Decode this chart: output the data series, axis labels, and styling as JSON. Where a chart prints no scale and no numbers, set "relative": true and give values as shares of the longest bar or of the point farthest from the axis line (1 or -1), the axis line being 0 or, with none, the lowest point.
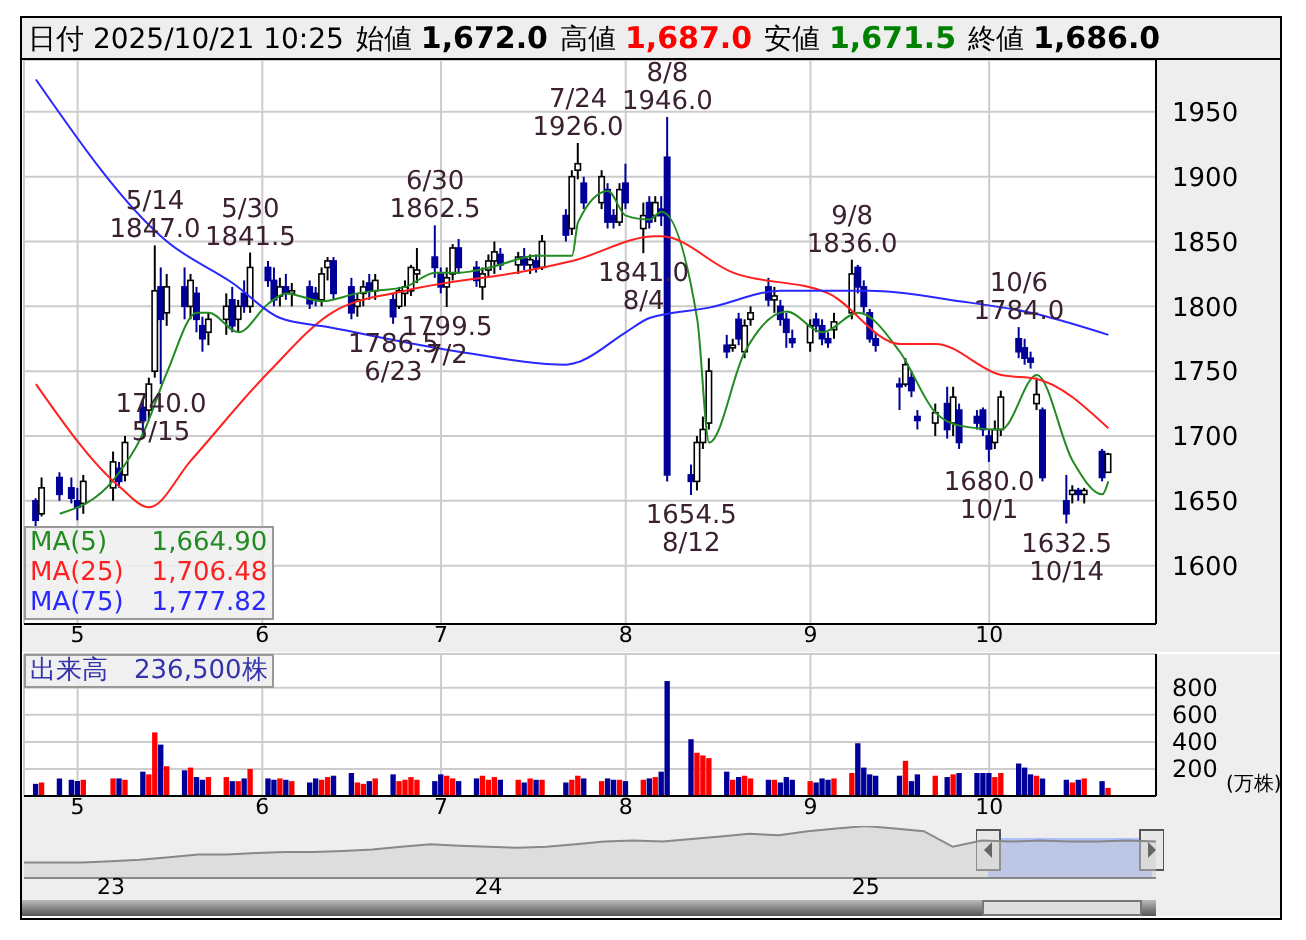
{
  "chart_data": [
    {
      "type": "candlestick",
      "title": "日付 2025/10/21 10:25",
      "colors": [
        "#000099",
        "#ffffff",
        "#000099",
        "#000099",
        "#000099",
        "#ffffff",
        "#ffffff",
        "#000099",
        "#ffffff",
        "#000099",
        "#ffffff",
        "#ffffff",
        "#000099",
        "#ffffff",
        "#000099",
        "#ffffff",
        "#000099",
        "#000099",
        "#ffffff",
        "#ffffff",
        "#000099",
        "#ffffff",
        "#000099",
        "#ffffff",
        "#000099",
        "#000099",
        "#ffffff",
        "#000099",
        "#ffffff",
        "#000099",
        "#000099",
        "#ffffff",
        "#ffffff",
        "#000099",
        "#000099",
        "#ffffff",
        "#ffffff",
        "#000099",
        "#ffffff",
        "#000099",
        "#ffffff",
        "#ffffff",
        "#ffffff",
        "#ffffff",
        "#000099",
        "#000099",
        "#ffffff",
        "#ffffff",
        "#000099",
        "#000099",
        "#ffffff",
        "#ffffff",
        "#ffffff",
        "#000099",
        "#ffffff",
        "#000099",
        "#ffffff",
        "#000099",
        "#ffffff",
        "#000099",
        "#ffffff",
        "#ffffff",
        "#000099",
        "#ffffff",
        "#000099",
        "#000099",
        "#ffffff",
        "#000099",
        "#ffffff",
        "#000099",
        "#ffffff",
        "#000099",
        "#000099",
        "#000099",
        "#ffffff",
        "#ffffff",
        "#ffffff",
        "#000099",
        "#ffffff",
        "#000099",
        "#ffffff",
        "#ffffff",
        "#000099",
        "#ffffff",
        "#000099",
        "#000099",
        "#000099",
        "#ffffff",
        "#000099",
        "#000099",
        "#000099",
        "#ffffff",
        "#ffffff",
        "#000099",
        "#000099",
        "#000099",
        "#000099",
        "#000099",
        "#ffffff",
        "#000099",
        "#000099",
        "#ffffff",
        "#000099",
        "#ffffff",
        "#000099",
        "#000099",
        "#000099",
        "#000099",
        "#ffffff",
        "#ffffff",
        "#000099",
        "#000099",
        "#000099",
        "#ffffff",
        "#000099",
        "#000099",
        "#ffffff",
        "#000099",
        "#ffffff",
        "#000099",
        "#ffffff"
      ],
      "x": [
        "2025-04-24",
        "2025-04-25",
        "2025-04-28",
        "2025-04-30",
        "2025-05-01",
        "2025-05-02",
        "2025-05-07",
        "2025-05-08",
        "2025-05-09",
        "2025-05-12",
        "2025-05-13",
        "2025-05-14",
        "2025-05-15",
        "2025-05-16",
        "2025-05-19",
        "2025-05-20",
        "2025-05-21",
        "2025-05-22",
        "2025-05-23",
        "2025-05-26",
        "2025-05-27",
        "2025-05-28",
        "2025-05-29",
        "2025-05-30",
        "2025-06-02",
        "2025-06-03",
        "2025-06-04",
        "2025-06-05",
        "2025-06-06",
        "2025-06-09",
        "2025-06-10",
        "2025-06-11",
        "2025-06-12",
        "2025-06-13",
        "2025-06-16",
        "2025-06-17",
        "2025-06-18",
        "2025-06-19",
        "2025-06-20",
        "2025-06-23",
        "2025-06-24",
        "2025-06-25",
        "2025-06-26",
        "2025-06-27",
        "2025-06-30",
        "2025-07-01",
        "2025-07-02",
        "2025-07-03",
        "2025-07-04",
        "2025-07-07",
        "2025-07-08",
        "2025-07-09",
        "2025-07-10",
        "2025-07-11",
        "2025-07-14",
        "2025-07-15",
        "2025-07-16",
        "2025-07-17",
        "2025-07-18",
        "2025-07-22",
        "2025-07-23",
        "2025-07-24",
        "2025-07-25",
        "2025-07-28",
        "2025-07-29",
        "2025-07-30",
        "2025-07-31",
        "2025-08-01",
        "2025-08-04",
        "2025-08-05",
        "2025-08-06",
        "2025-08-07",
        "2025-08-08",
        "2025-08-12",
        "2025-08-13",
        "2025-08-14",
        "2025-08-15",
        "2025-08-18",
        "2025-08-19",
        "2025-08-20",
        "2025-08-21",
        "2025-08-22",
        "2025-08-25",
        "2025-08-26",
        "2025-08-27",
        "2025-08-28",
        "2025-08-29",
        "2025-09-01",
        "2025-09-02",
        "2025-09-03",
        "2025-09-04",
        "2025-09-05",
        "2025-09-08",
        "2025-09-09",
        "2025-09-10",
        "2025-09-11",
        "2025-09-12",
        "2025-09-16",
        "2025-09-17",
        "2025-09-18",
        "2025-09-19",
        "2025-09-22",
        "2025-09-24",
        "2025-09-25",
        "2025-09-26",
        "2025-09-29",
        "2025-09-30",
        "2025-10-01",
        "2025-10-02",
        "2025-10-03",
        "2025-10-06",
        "2025-10-07",
        "2025-10-08",
        "2025-10-09",
        "2025-10-10",
        "2025-10-14",
        "2025-10-15",
        "2025-10-16",
        "2025-10-17",
        "2025-10-20",
        "2025-10-21"
      ],
      "ohlc": [
        [
          1650,
          1652,
          1628,
          1635
        ],
        [
          1640,
          1668,
          1638,
          1660
        ],
        [
          1668,
          1672,
          1650,
          1655
        ],
        [
          1660,
          1668,
          1648,
          1652
        ],
        [
          1650,
          1660,
          1635,
          1645
        ],
        [
          1648,
          1670,
          1640,
          1665
        ],
        [
          1660,
          1688,
          1650,
          1680
        ],
        [
          1675,
          1680,
          1660,
          1665
        ],
        [
          1670,
          1700,
          1665,
          1695
        ],
        [
          1722,
          1728,
          1700,
          1712
        ],
        [
          1720,
          1745,
          1712,
          1740
        ],
        [
          1750,
          1847,
          1745,
          1812
        ],
        [
          1815,
          1830,
          1740,
          1790
        ],
        [
          1795,
          1825,
          1785,
          1815
        ],
        [
          1815,
          1830,
          1790,
          1800
        ],
        [
          1800,
          1825,
          1790,
          1820
        ],
        [
          1810,
          1815,
          1780,
          1790
        ],
        [
          1785,
          1792,
          1765,
          1775
        ],
        [
          1780,
          1795,
          1770,
          1790
        ],
        [
          1790,
          1810,
          1778,
          1800
        ],
        [
          1805,
          1815,
          1780,
          1785
        ],
        [
          1790,
          1805,
          1780,
          1800
        ],
        [
          1810,
          1820,
          1795,
          1800
        ],
        [
          1800,
          1841.5,
          1795,
          1830
        ],
        [
          1830,
          1835,
          1815,
          1820
        ],
        [
          1820,
          1830,
          1800,
          1805
        ],
        [
          1808,
          1822,
          1800,
          1815
        ],
        [
          1815,
          1825,
          1805,
          1810
        ],
        [
          1810,
          1818,
          1800,
          1812
        ],
        [
          1815,
          1820,
          1798,
          1802
        ],
        [
          1810,
          1815,
          1800,
          1805
        ],
        [
          1805,
          1830,
          1800,
          1825
        ],
        [
          1830,
          1838,
          1820,
          1835
        ],
        [
          1835,
          1838,
          1805,
          1810
        ],
        [
          1815,
          1822,
          1790,
          1795
        ],
        [
          1800,
          1810,
          1792,
          1805
        ],
        [
          1810,
          1820,
          1800,
          1815
        ],
        [
          1818,
          1825,
          1805,
          1812
        ],
        [
          1812,
          1825,
          1805,
          1820
        ],
        [
          1805,
          1810,
          1786.5,
          1792
        ],
        [
          1800,
          1815,
          1798,
          1812
        ],
        [
          1810,
          1820,
          1800,
          1815
        ],
        [
          1812,
          1832,
          1808,
          1830
        ],
        [
          1825,
          1845,
          1818,
          1828
        ],
        [
          1838,
          1862.5,
          1822,
          1830
        ],
        [
          1825,
          1830,
          1810,
          1815
        ],
        [
          1815,
          1830,
          1799.5,
          1822
        ],
        [
          1825,
          1848,
          1820,
          1845
        ],
        [
          1845,
          1852,
          1825,
          1830
        ],
        [
          1830,
          1835,
          1815,
          1820
        ],
        [
          1815,
          1830,
          1805,
          1825
        ],
        [
          1828,
          1840,
          1822,
          1835
        ],
        [
          1835,
          1850,
          1825,
          1842
        ],
        [
          1840,
          1845,
          1828,
          1832
        ],
        [
          1832,
          1842,
          1825,
          1838
        ],
        [
          1838,
          1845,
          1828,
          1832
        ],
        [
          1832,
          1840,
          1825,
          1836
        ],
        [
          1835,
          1840,
          1826,
          1830
        ],
        [
          1830,
          1855,
          1828,
          1850
        ],
        [
          1870,
          1875,
          1850,
          1855
        ],
        [
          1860,
          1905,
          1855,
          1900
        ],
        [
          1905,
          1926,
          1898,
          1910
        ],
        [
          1895,
          1900,
          1875,
          1880
        ],
        [
          1880,
          1905,
          1875,
          1900
        ],
        [
          1890,
          1895,
          1860,
          1865
        ],
        [
          1870,
          1875,
          1860,
          1865
        ],
        [
          1865,
          1895,
          1862,
          1890
        ],
        [
          1895,
          1910,
          1875,
          1880
        ],
        [
          1860,
          1880,
          1841,
          1870
        ],
        [
          1880,
          1885,
          1860,
          1865
        ],
        [
          1870,
          1885,
          1865,
          1880
        ],
        [
          1875,
          1885,
          1862,
          1870
        ],
        [
          1915,
          1946,
          1665,
          1670
        ],
        [
          1670,
          1678,
          1654.5,
          1665
        ],
        [
          1665,
          1700,
          1658,
          1695
        ],
        [
          1695,
          1715,
          1690,
          1705
        ],
        [
          1710,
          1760,
          1705,
          1750
        ],
        [
          1770,
          1778,
          1760,
          1765
        ],
        [
          1768,
          1775,
          1765,
          1770
        ],
        [
          1790,
          1795,
          1770,
          1775
        ],
        [
          1765,
          1790,
          1760,
          1785
        ],
        [
          1790,
          1800,
          1785,
          1795
        ],
        [
          1815,
          1822,
          1800,
          1805
        ],
        [
          1805,
          1815,
          1795,
          1808
        ],
        [
          1800,
          1805,
          1785,
          1790
        ],
        [
          1790,
          1795,
          1768,
          1780
        ],
        [
          1775,
          1782,
          1768,
          1772
        ],
        [
          1772,
          1790,
          1765,
          1785
        ],
        [
          1790,
          1795,
          1780,
          1785
        ],
        [
          1785,
          1790,
          1770,
          1775
        ],
        [
          1775,
          1780,
          1768,
          1772
        ],
        [
          1782,
          1795,
          1775,
          1788
        ],
        [
          1795,
          1836,
          1790,
          1825
        ],
        [
          1830,
          1832,
          1810,
          1815
        ],
        [
          1815,
          1820,
          1795,
          1800
        ],
        [
          1795,
          1798,
          1772,
          1775
        ],
        [
          1775,
          1780,
          1765,
          1770
        ],
        [
          1740,
          1745,
          1720,
          1738
        ],
        [
          1740,
          1760,
          1738,
          1755
        ],
        [
          1745,
          1750,
          1730,
          1735
        ],
        [
          1715,
          1720,
          1705,
          1712
        ],
        [
          1710,
          1725,
          1700,
          1718
        ],
        [
          1725,
          1738,
          1698,
          1705
        ],
        [
          1710,
          1738,
          1700,
          1730
        ],
        [
          1720,
          1725,
          1690,
          1695
        ],
        [
          1715,
          1720,
          1705,
          1710
        ],
        [
          1720,
          1722,
          1700,
          1705
        ],
        [
          1700,
          1705,
          1680,
          1690
        ],
        [
          1695,
          1712,
          1690,
          1705
        ],
        [
          1705,
          1735,
          1700,
          1730
        ],
        [
          1775,
          1784,
          1760,
          1765
        ],
        [
          1768,
          1775,
          1755,
          1760
        ],
        [
          1760,
          1765,
          1752,
          1757
        ],
        [
          1725,
          1745,
          1720,
          1732
        ],
        [
          1720,
          1722,
          1665,
          1668
        ],
        [
          1650,
          1670,
          1632.5,
          1640
        ],
        [
          1655,
          1662,
          1648,
          1658
        ],
        [
          1658,
          1660,
          1650,
          1655
        ],
        [
          1655,
          1660,
          1648,
          1658
        ],
        [
          1688,
          1690,
          1665,
          1668
        ],
        [
          1672,
          1687,
          1671.5,
          1686
        ]
      ],
      "series": [
        {
          "name": "MA(5) 1,664.90",
          "type": "line",
          "color": "#228b22",
          "x": [
            "2025-04-28",
            "2025-05-07",
            "2025-05-12",
            "2025-05-16",
            "2025-05-21",
            "2025-05-23",
            "2025-05-28",
            "2025-06-02",
            "2025-06-05",
            "2025-06-11",
            "2025-06-17",
            "2025-06-20",
            "2025-06-25",
            "2025-06-30",
            "2025-07-04",
            "2025-07-10",
            "2025-07-17",
            "2025-07-23",
            "2025-07-24",
            "2025-07-29",
            "2025-08-01",
            "2025-08-05",
            "2025-08-07",
            "2025-08-13",
            "2025-08-15",
            "2025-08-21",
            "2025-08-28",
            "2025-09-03",
            "2025-09-09",
            "2025-09-16",
            "2025-09-22",
            "2025-09-26",
            "2025-10-03",
            "2025-10-09",
            "2025-10-15",
            "2025-10-20",
            "2025-10-21"
          ],
          "values": [
            1640,
            1666,
            1702,
            1749,
            1795,
            1795,
            1780,
            1802,
            1810,
            1804,
            1810,
            1812,
            1815,
            1826,
            1826,
            1831,
            1839,
            1839,
            1865,
            1889,
            1870,
            1867,
            1873,
            1790,
            1695,
            1765,
            1796,
            1780,
            1795,
            1765,
            1718,
            1708,
            1705,
            1747,
            1681,
            1655,
            1665
          ]
        },
        {
          "name": "MA(25) 1,706.48",
          "type": "line",
          "color": "#ff2020",
          "x": [
            "2025-04-24",
            "2025-05-08",
            "2025-05-13",
            "2025-05-20",
            "2025-06-02",
            "2025-06-13",
            "2025-06-25",
            "2025-07-16",
            "2025-07-23",
            "2025-08-06",
            "2025-08-07",
            "2025-08-19",
            "2025-09-04",
            "2025-09-16",
            "2025-09-22",
            "2025-10-03",
            "2025-10-09",
            "2025-10-21"
          ],
          "values": [
            1740,
            1661,
            1645,
            1681,
            1749,
            1796,
            1812,
            1828,
            1835,
            1854,
            1854,
            1826,
            1810,
            1771,
            1771,
            1747,
            1744,
            1706
          ]
        },
        {
          "name": "MA(75) 1,777.82",
          "type": "line",
          "color": "#2828ff",
          "x": [
            "2025-04-24",
            "2025-05-16",
            "2025-05-27",
            "2025-06-04",
            "2025-06-12",
            "2025-07-04",
            "2025-07-22",
            "2025-07-24",
            "2025-08-01",
            "2025-08-05",
            "2025-08-15",
            "2025-08-27",
            "2025-09-11",
            "2025-09-26",
            "2025-10-08",
            "2025-10-21"
          ],
          "values": [
            1975,
            1850,
            1818,
            1791,
            1784,
            1765,
            1755,
            1757,
            1780,
            1791,
            1799,
            1812,
            1812,
            1804,
            1795,
            1778
          ]
        }
      ],
      "xlim": [
        "2025-04-22",
        "2025-10-29"
      ],
      "xticks": [
        {
          "value": "2025-05-01",
          "label": "5"
        },
        {
          "value": "2025-06-01",
          "label": "6"
        },
        {
          "value": "2025-07-01",
          "label": "7"
        },
        {
          "value": "2025-08-01",
          "label": "8"
        },
        {
          "value": "2025-09-01",
          "label": "9"
        },
        {
          "value": "2025-10-01",
          "label": "10"
        }
      ],
      "ylim": [
        1555,
        1990
      ],
      "yticks": [
        1600,
        1650,
        1700,
        1750,
        1800,
        1850,
        1900,
        1950
      ],
      "grid": true,
      "legend": "bottom left",
      "annotations": [
        "始値 1,672.0",
        "高値 1,687.0",
        "安値 1,671.5",
        "終値 1,686.0",
        {
          "text": "5/14\n1847.0",
          "x": "2025-05-14",
          "y": 1847
        },
        {
          "text": "1740.0\n5/15",
          "x": "2025-05-15",
          "y": 1740
        },
        {
          "text": "5/30\n1841.5",
          "x": "2025-05-30",
          "y": 1841.5
        },
        {
          "text": "1786.5\n6/23",
          "x": "2025-06-23",
          "y": 1786.5
        },
        {
          "text": "6/30\n1862.5",
          "x": "2025-06-30",
          "y": 1862.5
        },
        {
          "text": "1799.5\n7/2",
          "x": "2025-07-02",
          "y": 1799.5
        },
        {
          "text": "7/24\n1926.0",
          "x": "2025-07-24",
          "y": 1926
        },
        {
          "text": "1841.0\n8/4",
          "x": "2025-08-04",
          "y": 1841
        },
        {
          "text": "8/8\n1946.0",
          "x": "2025-08-08",
          "y": 1946
        },
        {
          "text": "1654.5\n8/12",
          "x": "2025-08-12",
          "y": 1654.5
        },
        {
          "text": "9/8\n1836.0",
          "x": "2025-09-08",
          "y": 1836
        },
        {
          "text": "1680.0\n10/1",
          "x": "2025-10-01",
          "y": 1680
        },
        {
          "text": "10/6\n1784.0",
          "x": "2025-10-06",
          "y": 1784
        },
        {
          "text": "1632.5\n10/14",
          "x": "2025-10-14",
          "y": 1632.5
        }
      ]
    },
    {
      "type": "bar",
      "title": "出来高　236,500株",
      "ylabel": "(万株)",
      "x": [
        "2025-04-24",
        "2025-04-25",
        "2025-04-28",
        "2025-04-30",
        "2025-05-01",
        "2025-05-02",
        "2025-05-07",
        "2025-05-08",
        "2025-05-09",
        "2025-05-12",
        "2025-05-13",
        "2025-05-14",
        "2025-05-15",
        "2025-05-16",
        "2025-05-19",
        "2025-05-20",
        "2025-05-21",
        "2025-05-22",
        "2025-05-23",
        "2025-05-26",
        "2025-05-27",
        "2025-05-28",
        "2025-05-29",
        "2025-05-30",
        "2025-06-02",
        "2025-06-03",
        "2025-06-04",
        "2025-06-05",
        "2025-06-06",
        "2025-06-09",
        "2025-06-10",
        "2025-06-11",
        "2025-06-12",
        "2025-06-13",
        "2025-06-16",
        "2025-06-17",
        "2025-06-18",
        "2025-06-19",
        "2025-06-20",
        "2025-06-23",
        "2025-06-24",
        "2025-06-25",
        "2025-06-26",
        "2025-06-27",
        "2025-06-30",
        "2025-07-01",
        "2025-07-02",
        "2025-07-03",
        "2025-07-04",
        "2025-07-07",
        "2025-07-08",
        "2025-07-09",
        "2025-07-10",
        "2025-07-11",
        "2025-07-14",
        "2025-07-15",
        "2025-07-16",
        "2025-07-17",
        "2025-07-18",
        "2025-07-22",
        "2025-07-23",
        "2025-07-24",
        "2025-07-25",
        "2025-07-28",
        "2025-07-29",
        "2025-07-30",
        "2025-07-31",
        "2025-08-01",
        "2025-08-04",
        "2025-08-05",
        "2025-08-06",
        "2025-08-07",
        "2025-08-08",
        "2025-08-12",
        "2025-08-13",
        "2025-08-14",
        "2025-08-15",
        "2025-08-18",
        "2025-08-19",
        "2025-08-20",
        "2025-08-21",
        "2025-08-22",
        "2025-08-25",
        "2025-08-26",
        "2025-08-27",
        "2025-08-28",
        "2025-08-29",
        "2025-09-01",
        "2025-09-02",
        "2025-09-03",
        "2025-09-04",
        "2025-09-05",
        "2025-09-08",
        "2025-09-09",
        "2025-09-10",
        "2025-09-11",
        "2025-09-12",
        "2025-09-16",
        "2025-09-17",
        "2025-09-18",
        "2025-09-19",
        "2025-09-22",
        "2025-09-24",
        "2025-09-25",
        "2025-09-26",
        "2025-09-29",
        "2025-09-30",
        "2025-10-01",
        "2025-10-02",
        "2025-10-03",
        "2025-10-06",
        "2025-10-07",
        "2025-10-08",
        "2025-10-09",
        "2025-10-10",
        "2025-10-14",
        "2025-10-15",
        "2025-10-16",
        "2025-10-17",
        "2025-10-20",
        "2025-10-21"
      ],
      "values": [
        90,
        100,
        130,
        120,
        110,
        120,
        130,
        130,
        120,
        180,
        160,
        470,
        380,
        220,
        190,
        210,
        140,
        120,
        140,
        140,
        110,
        110,
        130,
        200,
        130,
        120,
        130,
        120,
        110,
        100,
        130,
        120,
        140,
        150,
        170,
        100,
        90,
        110,
        130,
        160,
        110,
        120,
        140,
        120,
        110,
        160,
        150,
        130,
        110,
        130,
        150,
        120,
        140,
        120,
        120,
        100,
        130,
        120,
        120,
        100,
        120,
        150,
        130,
        110,
        130,
        120,
        120,
        110,
        120,
        130,
        140,
        180,
        850,
        420,
        320,
        300,
        280,
        180,
        120,
        140,
        150,
        130,
        120,
        120,
        100,
        140,
        120,
        110,
        100,
        130,
        120,
        130,
        170,
        390,
        210,
        160,
        150,
        150,
        260,
        110,
        160,
        150,
        140,
        160,
        170,
        170,
        170,
        170,
        140,
        170,
        240,
        210,
        160,
        150,
        130,
        120,
        100,
        120,
        130,
        110,
        60
      ],
      "colors": [
        "#000099",
        "#ff0000",
        "#000099",
        "#000099",
        "#000099",
        "#ff0000",
        "#ff0000",
        "#000099",
        "#ff0000",
        "#000099",
        "#ff0000",
        "#ff0000",
        "#000099",
        "#ff0000",
        "#000099",
        "#ff0000",
        "#000099",
        "#000099",
        "#ff0000",
        "#ff0000",
        "#000099",
        "#ff0000",
        "#000099",
        "#ff0000",
        "#000099",
        "#000099",
        "#ff0000",
        "#000099",
        "#ff0000",
        "#000099",
        "#000099",
        "#ff0000",
        "#ff0000",
        "#000099",
        "#000099",
        "#ff0000",
        "#ff0000",
        "#000099",
        "#ff0000",
        "#000099",
        "#ff0000",
        "#ff0000",
        "#ff0000",
        "#ff0000",
        "#000099",
        "#000099",
        "#ff0000",
        "#ff0000",
        "#000099",
        "#000099",
        "#ff0000",
        "#ff0000",
        "#ff0000",
        "#000099",
        "#ff0000",
        "#000099",
        "#ff0000",
        "#000099",
        "#ff0000",
        "#000099",
        "#ff0000",
        "#ff0000",
        "#000099",
        "#ff0000",
        "#000099",
        "#000099",
        "#ff0000",
        "#000099",
        "#ff0000",
        "#000099",
        "#ff0000",
        "#000099",
        "#000099",
        "#000099",
        "#ff0000",
        "#ff0000",
        "#ff0000",
        "#000099",
        "#ff0000",
        "#000099",
        "#ff0000",
        "#ff0000",
        "#000099",
        "#ff0000",
        "#000099",
        "#000099",
        "#000099",
        "#ff0000",
        "#000099",
        "#000099",
        "#000099",
        "#ff0000",
        "#ff0000",
        "#000099",
        "#000099",
        "#000099",
        "#000099",
        "#000099",
        "#ff0000",
        "#000099",
        "#000099",
        "#ff0000",
        "#000099",
        "#ff0000",
        "#000099",
        "#000099",
        "#000099",
        "#000099",
        "#ff0000",
        "#ff0000",
        "#000099",
        "#000099",
        "#000099",
        "#ff0000",
        "#000099",
        "#000099",
        "#ff0000",
        "#000099",
        "#ff0000",
        "#000099",
        "#ff0000"
      ],
      "xlim": [
        "2025-04-22",
        "2025-10-29"
      ],
      "xticks": [
        {
          "value": "2025-05-01",
          "label": "5"
        },
        {
          "value": "2025-06-01",
          "label": "6"
        },
        {
          "value": "2025-07-01",
          "label": "7"
        },
        {
          "value": "2025-08-01",
          "label": "8"
        },
        {
          "value": "2025-09-01",
          "label": "9"
        },
        {
          "value": "2025-10-01",
          "label": "10"
        }
      ],
      "ylim": [
        0,
        1050
      ],
      "yticks": [
        200,
        400,
        600,
        800
      ],
      "grid": true
    },
    {
      "type": "area",
      "relative": true,
      "color": "#888888",
      "categories": [
        null,
        null,
        null,
        "23",
        null,
        null,
        null,
        null,
        null,
        null,
        null,
        null,
        null,
        null,
        null,
        null,
        "24",
        null,
        null,
        null,
        null,
        null,
        null,
        null,
        null,
        null,
        null,
        null,
        null,
        "25",
        null,
        null,
        null,
        null,
        null,
        null,
        null,
        null,
        null,
        null
      ],
      "values": [
        0.3,
        0.3,
        0.3,
        0.32,
        0.35,
        0.4,
        0.45,
        0.45,
        0.48,
        0.5,
        0.5,
        0.52,
        0.55,
        0.6,
        0.65,
        0.62,
        0.6,
        0.58,
        0.6,
        0.65,
        0.7,
        0.72,
        0.7,
        0.75,
        0.8,
        0.85,
        0.82,
        0.9,
        0.95,
        1,
        0.95,
        0.9,
        0.6,
        0.72,
        0.7,
        0.72,
        0.7,
        0.7,
        0.72,
        0.7
      ]
    }
  ]
}
